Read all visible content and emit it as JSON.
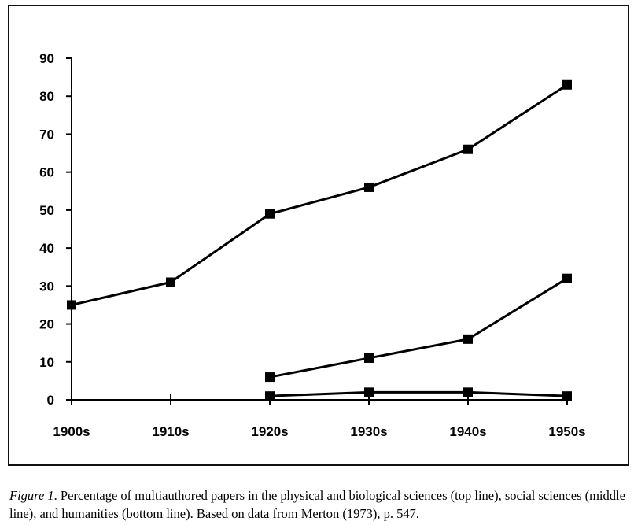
{
  "chart_data": {
    "type": "line",
    "title": "",
    "xlabel": "",
    "ylabel": "",
    "categories": [
      "1900s",
      "1910s",
      "1920s",
      "1930s",
      "1940s",
      "1950s"
    ],
    "ylim": [
      0,
      90
    ],
    "yticks": [
      0,
      10,
      20,
      30,
      40,
      50,
      60,
      70,
      80,
      90
    ],
    "grid": false,
    "legend": "none",
    "marker": "square",
    "line_color": "#000000",
    "series": [
      {
        "values": [
          25,
          31,
          49,
          56,
          66,
          83
        ]
      },
      {
        "values": [
          null,
          null,
          6,
          11,
          16,
          32
        ]
      },
      {
        "values": [
          null,
          null,
          1,
          2,
          2,
          1
        ]
      }
    ]
  },
  "caption": {
    "label": "Figure 1",
    "text": ". Percentage of multiauthored papers in the physical and biological sciences (top line), social sciences (middle line), and humanities (bottom line). Based on data from Merton (1973), p. 547."
  }
}
